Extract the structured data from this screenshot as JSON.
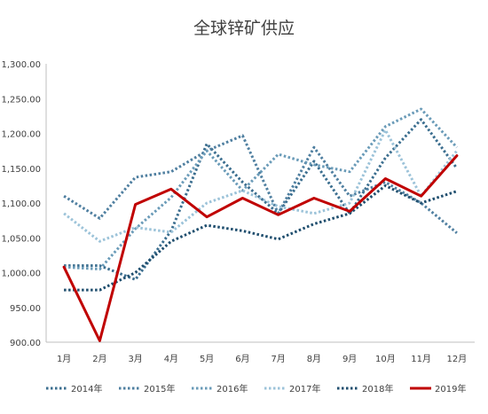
{
  "chart_data": {
    "type": "line",
    "title": "全球锌矿供应",
    "categories": [
      "1月",
      "2月",
      "3月",
      "4月",
      "5月",
      "6月",
      "7月",
      "8月",
      "9月",
      "10月",
      "11月",
      "12月"
    ],
    "ylim": [
      900,
      1300
    ],
    "yticks": [
      "900.00",
      "950.00",
      "1,000.00",
      "1,050.00",
      "1,100.00",
      "1,150.00",
      "1,200.00",
      "1,250.00",
      "1,300.00"
    ],
    "grid": false,
    "legend_position": "bottom",
    "series": [
      {
        "name": "2014年",
        "color": "#3b6e8f",
        "style": "dotted",
        "values": [
          1010,
          1010,
          990,
          1060,
          1185,
          1130,
          1085,
          1160,
          1085,
          1165,
          1220,
          1150
        ]
      },
      {
        "name": "2015年",
        "color": "#4f7fa0",
        "style": "dotted",
        "values": [
          1110,
          1078,
          1137,
          1145,
          1175,
          1197,
          1085,
          1180,
          1110,
          1130,
          1100,
          1057
        ]
      },
      {
        "name": "2016年",
        "color": "#6a9bb8",
        "style": "dotted",
        "values": [
          1008,
          1005,
          1063,
          1108,
          1175,
          1118,
          1170,
          1155,
          1145,
          1210,
          1235,
          1180
        ]
      },
      {
        "name": "2017年",
        "color": "#9cc3d9",
        "style": "dotted",
        "values": [
          1085,
          1045,
          1065,
          1058,
          1100,
          1118,
          1095,
          1085,
          1100,
          1205,
          1110,
          1175
        ]
      },
      {
        "name": "2018年",
        "color": "#1f4e6e",
        "style": "dotted",
        "values": [
          975,
          975,
          1000,
          1045,
          1068,
          1060,
          1048,
          1070,
          1085,
          1125,
          1100,
          1117
        ]
      },
      {
        "name": "2019年",
        "color": "#c00000",
        "style": "solid",
        "values": [
          1008,
          902,
          1098,
          1120,
          1080,
          1107,
          1083,
          1107,
          1088,
          1135,
          1110,
          1168
        ]
      }
    ]
  }
}
